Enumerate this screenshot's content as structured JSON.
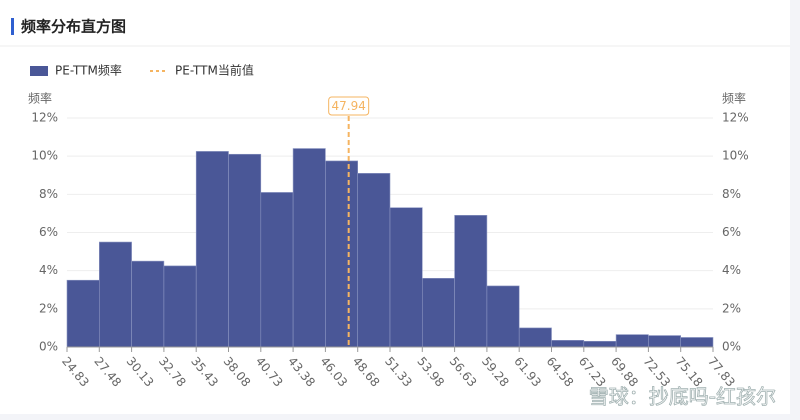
{
  "header": {
    "title": "频率分布直方图"
  },
  "chart_data": {
    "type": "histogram",
    "bins": [
      24.83,
      27.48,
      30.13,
      32.78,
      35.43,
      38.08,
      40.73,
      43.38,
      46.03,
      48.68,
      51.33,
      53.98,
      56.63,
      59.28,
      61.93,
      64.58,
      67.23,
      69.88,
      72.53,
      75.18,
      77.83
    ],
    "series": [
      {
        "name": "PE-TTM频率",
        "color": "#4a5797",
        "values": [
          3.5,
          5.5,
          4.5,
          4.25,
          10.25,
          10.1,
          8.1,
          10.4,
          9.75,
          9.1,
          7.3,
          3.6,
          6.9,
          3.2,
          1.0,
          0.35,
          0.3,
          0.65,
          0.6,
          0.5
        ]
      }
    ],
    "current": {
      "name": "PE-TTM当前值",
      "value": 47.94,
      "color": "#f5b461"
    },
    "xlim": [
      24.83,
      77.83
    ],
    "ylim": [
      0,
      12
    ],
    "yticks": [
      {
        "value": 0,
        "label": "0%"
      },
      {
        "value": 2,
        "label": "2%"
      },
      {
        "value": 4,
        "label": "4%"
      },
      {
        "value": 6,
        "label": "6%"
      },
      {
        "value": 8,
        "label": "8%"
      },
      {
        "value": 10,
        "label": "10%"
      },
      {
        "value": 12,
        "label": "12%"
      }
    ],
    "y2lim": [
      0,
      12
    ],
    "y2ticks": [
      {
        "value": 0,
        "label": "0%"
      },
      {
        "value": 2,
        "label": "2%"
      },
      {
        "value": 4,
        "label": "4%"
      },
      {
        "value": 6,
        "label": "6%"
      },
      {
        "value": 8,
        "label": "8%"
      },
      {
        "value": 10,
        "label": "10%"
      },
      {
        "value": 12,
        "label": "12%"
      }
    ],
    "ylabel": "频率",
    "y2label": "频率",
    "grid": true
  },
  "watermark": "雪球：抄底吗-红孩尔"
}
